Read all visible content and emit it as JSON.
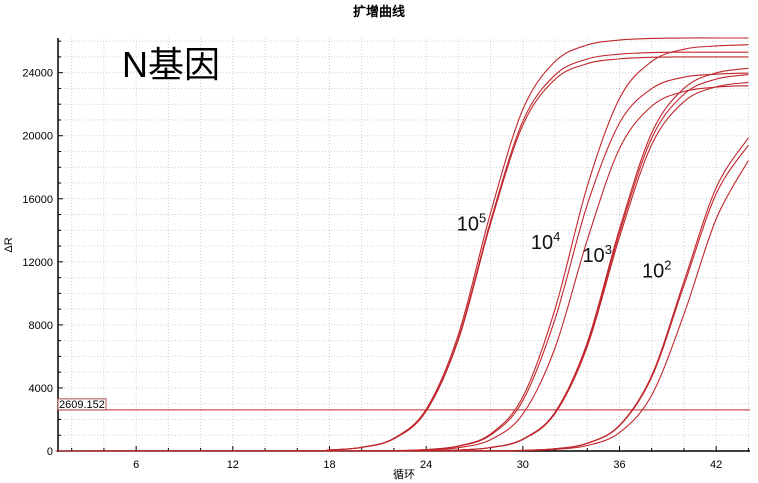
{
  "chart_data": {
    "type": "line",
    "title": "扩增曲线",
    "xlabel": "循环",
    "ylabel": "ΔR",
    "xlim": [
      1.15,
      44.1
    ],
    "ylim": [
      0,
      26200
    ],
    "xticks": [
      6,
      12,
      18,
      24,
      30,
      36,
      42
    ],
    "yticks": [
      0,
      4000,
      8000,
      12000,
      16000,
      20000,
      24000
    ],
    "grid": true,
    "line_color": "#c0262c",
    "annotation": "N基因",
    "threshold": {
      "value": 2609.152,
      "label": "2609.152",
      "color": "#c0262c"
    },
    "group_labels": [
      {
        "base": "10",
        "exp": "5",
        "x": 25.9,
        "y": 14000
      },
      {
        "base": "10",
        "exp": "4",
        "x": 30.5,
        "y": 12800
      },
      {
        "base": "10",
        "exp": "3",
        "x": 33.7,
        "y": 12000
      },
      {
        "base": "10",
        "exp": "2",
        "x": 37.4,
        "y": 11000
      }
    ],
    "x": [
      1,
      16,
      18,
      20,
      22,
      24,
      26,
      28,
      30,
      32,
      34,
      36,
      38,
      40,
      42,
      44
    ],
    "series": [
      {
        "group": "10^5",
        "values": [
          0,
          10,
          68,
          238,
          812,
          2646,
          7388,
          15117,
          21667,
          24707,
          25755,
          26069,
          26174,
          26200,
          26200,
          26200
        ]
      },
      {
        "group": "10^5",
        "values": [
          0,
          10,
          66,
          230,
          784,
          2555,
          7135,
          14598,
          20923,
          23858,
          24870,
          25174,
          25275,
          25300,
          25300,
          25300
        ]
      },
      {
        "group": "10^5",
        "values": [
          0,
          10,
          65,
          228,
          775,
          2525,
          7050,
          14425,
          20675,
          23575,
          24575,
          24875,
          24975,
          25000,
          25000,
          25000
        ]
      },
      {
        "group": "10^4",
        "values": [
          0,
          0,
          3,
          8,
          26,
          93,
          323,
          1084,
          3431,
          9004,
          16796,
          22369,
          24716,
          25490,
          25697,
          25774
        ]
      },
      {
        "group": "10^4",
        "values": [
          0,
          0,
          2,
          7,
          24,
          86,
          300,
          1008,
          3192,
          8376,
          15624,
          20808,
          22992,
          23712,
          23904,
          23976
        ]
      },
      {
        "group": "10^4",
        "values": [
          0,
          0,
          2,
          5,
          19,
          60,
          211,
          719,
          2343,
          6542,
          13386,
          19186,
          21878,
          22806,
          23084,
          23177
        ]
      },
      {
        "group": "10^3",
        "values": [
          0,
          0,
          0,
          2,
          5,
          20,
          63,
          222,
          756,
          2464,
          6881,
          14079,
          20179,
          23009,
          23985,
          24278
        ]
      },
      {
        "group": "10^3",
        "values": [
          0,
          0,
          0,
          2,
          5,
          19,
          62,
          218,
          744,
          2424,
          6768,
          13848,
          19848,
          22632,
          23592,
          23880
        ]
      },
      {
        "group": "10^3",
        "values": [
          0,
          0,
          0,
          2,
          5,
          19,
          61,
          214,
          729,
          2374,
          6627,
          13560,
          19435,
          22161,
          23101,
          23383
        ]
      },
      {
        "group": "10^2",
        "values": [
          0,
          0,
          0,
          0,
          0,
          0,
          4,
          13,
          41,
          144,
          495,
          1634,
          4795,
          10750,
          16706,
          19866
        ]
      },
      {
        "group": "10^2",
        "values": [
          0,
          0,
          0,
          0,
          0,
          0,
          1,
          4,
          29,
          100,
          349,
          1169,
          3547,
          8672,
          14719,
          18430
        ]
      },
      {
        "group": "10^2",
        "values": [
          0,
          0,
          0,
          0,
          0,
          0,
          4,
          13,
          40,
          141,
          483,
          1596,
          4683,
          10500,
          16317,
          19404
        ]
      }
    ]
  }
}
